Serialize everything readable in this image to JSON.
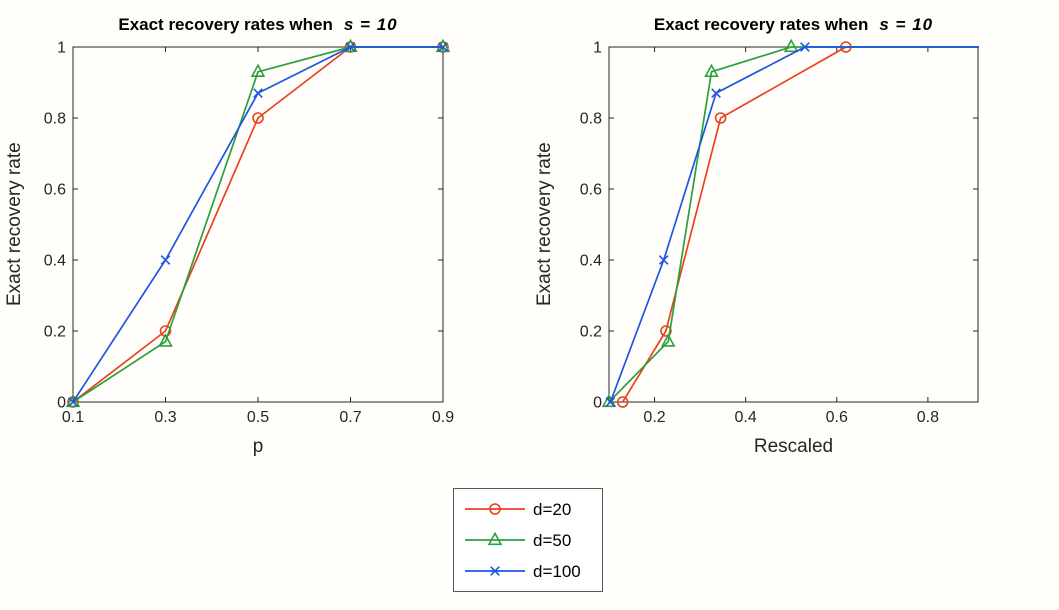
{
  "figure": {
    "background": "#fffefb",
    "axis_color": "#262626",
    "tick_label_color": "#262626",
    "series_colors": {
      "d20": "#e8421f",
      "d50": "#2aa03a",
      "d100": "#1f56e0"
    }
  },
  "chart_data": [
    {
      "type": "line",
      "title": "Exact recovery rates when  s = 10",
      "title_prefix": "Exact recovery rates when",
      "title_emph": "s = 10",
      "xlabel": "p",
      "ylabel": "Exact recovery rate",
      "xlim": [
        0.1,
        0.9
      ],
      "ylim": [
        0,
        1
      ],
      "xticks": [
        0.1,
        0.3,
        0.5,
        0.7,
        0.9
      ],
      "yticks": [
        0,
        0.2,
        0.4,
        0.6,
        0.8,
        1
      ],
      "grid": false,
      "legend_position": "below-figure",
      "series": [
        {
          "name": "d=20",
          "color": "#e8421f",
          "marker": "circle",
          "x": [
            0.1,
            0.3,
            0.5,
            0.7,
            0.9
          ],
          "y": [
            0,
            0.2,
            0.8,
            1,
            1
          ]
        },
        {
          "name": "d=50",
          "color": "#2aa03a",
          "marker": "triangle",
          "x": [
            0.1,
            0.3,
            0.5,
            0.7,
            0.9
          ],
          "y": [
            0,
            0.17,
            0.93,
            1,
            1
          ]
        },
        {
          "name": "d=100",
          "color": "#1f56e0",
          "marker": "x",
          "x": [
            0.1,
            0.3,
            0.5,
            0.7,
            0.9
          ],
          "y": [
            0,
            0.4,
            0.87,
            1,
            1
          ]
        }
      ]
    },
    {
      "type": "line",
      "title": "Exact recovery rates when  s = 10",
      "title_prefix": "Exact recovery rates when",
      "title_emph": "s = 10",
      "xlabel": "Rescaled",
      "ylabel": "Exact recovery rate",
      "xlim": [
        0.1,
        0.91
      ],
      "ylim": [
        0,
        1
      ],
      "xticks": [
        0.2,
        0.4,
        0.6,
        0.8
      ],
      "yticks": [
        0,
        0.2,
        0.4,
        0.6,
        0.8,
        1
      ],
      "grid": false,
      "note": "lines continue along y=1 to the right axis edge; last markers clipped beyond xlim",
      "series": [
        {
          "name": "d=20",
          "color": "#e8421f",
          "marker": "circle",
          "x": [
            0.13,
            0.225,
            0.345,
            0.62,
            0.95
          ],
          "y": [
            0,
            0.2,
            0.8,
            1,
            1
          ]
        },
        {
          "name": "d=50",
          "color": "#2aa03a",
          "marker": "triangle",
          "x": [
            0.1,
            0.23,
            0.325,
            0.5,
            0.95
          ],
          "y": [
            0,
            0.17,
            0.93,
            1,
            1
          ]
        },
        {
          "name": "d=100",
          "color": "#1f56e0",
          "marker": "x",
          "x": [
            0.103,
            0.22,
            0.335,
            0.53,
            0.95
          ],
          "y": [
            0,
            0.4,
            0.87,
            1,
            1
          ]
        }
      ]
    }
  ],
  "legend": {
    "entries": [
      {
        "label": "d=20",
        "color": "#e8421f",
        "marker": "circle"
      },
      {
        "label": "d=50",
        "color": "#2aa03a",
        "marker": "triangle"
      },
      {
        "label": "d=100",
        "color": "#1f56e0",
        "marker": "x"
      }
    ]
  }
}
